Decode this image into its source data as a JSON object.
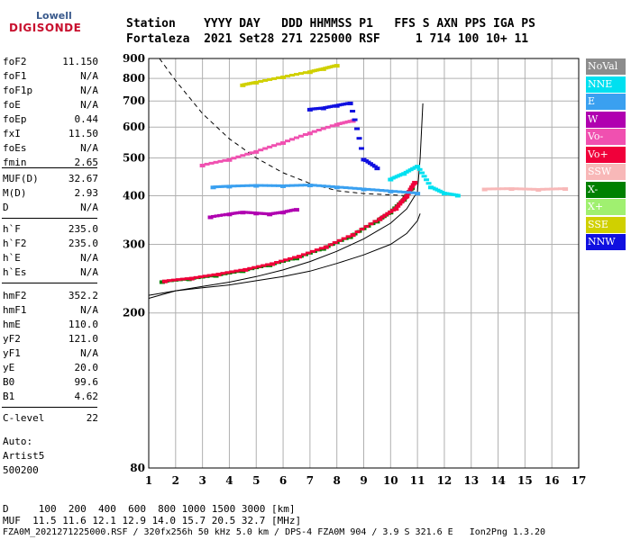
{
  "logo": {
    "line1": "Lowell",
    "line2": "DIGISONDE"
  },
  "header": {
    "line1": "Station    YYYY DAY   DDD HHMMSS P1   FFS S AXN PPS IGA PS",
    "line2": "Fortaleza  2021 Set28 271 225000 RSF     1 714 100 10+ 11"
  },
  "params_group1": [
    {
      "key": "foF2",
      "val": "11.150"
    },
    {
      "key": "foF1",
      "val": "N/A"
    },
    {
      "key": "foF1p",
      "val": "N/A"
    },
    {
      "key": "foE",
      "val": "N/A"
    },
    {
      "key": "foEp",
      "val": "0.44"
    },
    {
      "key": "fxI",
      "val": "11.50"
    },
    {
      "key": "foEs",
      "val": "N/A"
    },
    {
      "key": "fmin",
      "val": "2.65"
    }
  ],
  "params_group2": [
    {
      "key": "MUF(D)",
      "val": "32.67"
    },
    {
      "key": "M(D)",
      "val": "2.93"
    },
    {
      "key": "D",
      "val": "N/A"
    }
  ],
  "params_group3": [
    {
      "key": "h`F",
      "val": "235.0"
    },
    {
      "key": "h`F2",
      "val": "235.0"
    },
    {
      "key": "h`E",
      "val": "N/A"
    },
    {
      "key": "h`Es",
      "val": "N/A"
    }
  ],
  "params_group4": [
    {
      "key": "hmF2",
      "val": "352.2"
    },
    {
      "key": "hmF1",
      "val": "N/A"
    },
    {
      "key": "hmE",
      "val": "110.0"
    },
    {
      "key": "yF2",
      "val": "121.0"
    },
    {
      "key": "yF1",
      "val": "N/A"
    },
    {
      "key": "yE",
      "val": "20.0"
    },
    {
      "key": "B0",
      "val": "99.6"
    },
    {
      "key": "B1",
      "val": "4.62"
    }
  ],
  "params_group5": [
    {
      "key": "C-level",
      "val": "22"
    }
  ],
  "autoscale": {
    "line1": "Auto:",
    "line2": "Artist5",
    "line3": "500200"
  },
  "footer": {
    "line1": "D     100  200  400  600  800 1000 1500 3000 [km]",
    "line2": "MUF  11.5 11.6 12.1 12.9 14.0 15.7 20.5 32.7 [MHz]",
    "line3": "FZA0M_2021271225000.RSF / 320fx256h 50 kHz 5.0 km / DPS-4 FZA0M 904 / 3.9 S 321.6 E   Ion2Png 1.3.20"
  },
  "legend": [
    {
      "label": "NoVal",
      "color": "#8c8c8c"
    },
    {
      "label": "NNE",
      "color": "#00e0f0"
    },
    {
      "label": "E",
      "color": "#3aa0f0"
    },
    {
      "label": "W",
      "color": "#b000b0"
    },
    {
      "label": "Vo-",
      "color": "#f050b0"
    },
    {
      "label": "Vo+",
      "color": "#f0003a"
    },
    {
      "label": "SSW",
      "color": "#f8b8b8"
    },
    {
      "label": "X-",
      "color": "#008000"
    },
    {
      "label": "X+",
      "color": "#a0f070"
    },
    {
      "label": "SSE",
      "color": "#d0d000"
    },
    {
      "label": "NNW",
      "color": "#1010e0"
    }
  ],
  "chart_data": {
    "type": "scatter",
    "title": "",
    "xlabel": "",
    "ylabel": "",
    "xlim": [
      1,
      17
    ],
    "ylim": [
      80,
      900
    ],
    "y_scale": "log",
    "x_ticks": [
      1,
      2,
      3,
      4,
      5,
      6,
      7,
      8,
      9,
      10,
      11,
      12,
      13,
      14,
      15,
      16,
      17
    ],
    "y_ticks": [
      80,
      200,
      300,
      400,
      500,
      600,
      700,
      800,
      900
    ],
    "grid": true,
    "series": [
      {
        "name": "X-",
        "color": "#008000",
        "x": [
          1.5,
          2.5,
          3.5,
          4.5,
          5.5,
          6.5,
          7.5,
          8.5,
          9.5,
          10.0,
          10.5,
          10.8
        ],
        "y": [
          240,
          244,
          249,
          256,
          265,
          276,
          292,
          313,
          343,
          362,
          390,
          418
        ]
      },
      {
        "name": "Vo+",
        "color": "#f0003a",
        "x": [
          1.6,
          2.6,
          3.6,
          4.6,
          5.6,
          6.6,
          7.6,
          8.6,
          9.6,
          10.2,
          10.6,
          10.9
        ],
        "y": [
          241,
          245,
          251,
          258,
          267,
          279,
          295,
          317,
          348,
          370,
          398,
          432
        ]
      },
      {
        "name": "Vo-",
        "color": "#f050b0",
        "x": [
          3.0,
          4.0,
          5.0,
          6.0,
          7.0,
          8.0,
          8.6
        ],
        "y": [
          478,
          494,
          518,
          546,
          578,
          608,
          622
        ]
      },
      {
        "name": "E",
        "color": "#3aa0f0",
        "x": [
          3.4,
          4.0,
          5.0,
          6.0,
          7.0,
          8.0,
          9.0,
          10.0,
          11.0
        ],
        "y": [
          420,
          422,
          424,
          423,
          425,
          420,
          415,
          410,
          405
        ]
      },
      {
        "name": "W",
        "color": "#b000b0",
        "x": [
          3.3,
          4.0,
          4.5,
          5.0,
          5.5,
          6.0,
          6.5
        ],
        "y": [
          352,
          358,
          362,
          360,
          358,
          362,
          368
        ]
      },
      {
        "name": "NNW",
        "color": "#1010e0",
        "x": [
          7.0,
          7.5,
          8.0,
          8.5,
          9.0,
          9.5
        ],
        "y": [
          665,
          670,
          680,
          690,
          495,
          470
        ]
      },
      {
        "name": "NNE",
        "color": "#00e0f0",
        "x": [
          10.0,
          10.5,
          11.0,
          11.5,
          12.0,
          12.5
        ],
        "y": [
          440,
          455,
          475,
          420,
          405,
          400
        ]
      },
      {
        "name": "SSE",
        "color": "#d0d000",
        "x": [
          4.5,
          5.0,
          6.0,
          7.0,
          7.5,
          8.0
        ],
        "y": [
          768,
          780,
          805,
          830,
          845,
          862
        ]
      },
      {
        "name": "SSW",
        "color": "#f8b8b8",
        "x": [
          13.5,
          14.5,
          15.5,
          16.5
        ],
        "y": [
          415,
          416,
          414,
          416
        ]
      }
    ],
    "curves": [
      {
        "style": "dashed",
        "x": [
          1.4,
          2.0,
          3.0,
          4.0,
          5.0,
          6.0,
          7.0,
          8.0,
          9.0,
          10.0,
          10.6
        ],
        "y": [
          900,
          790,
          650,
          560,
          500,
          458,
          430,
          412,
          405,
          402,
          400
        ]
      },
      {
        "style": "solid",
        "x": [
          1.0,
          2.0,
          3.0,
          4.0,
          5.0,
          6.0,
          7.0,
          8.0,
          9.0,
          10.0,
          10.6,
          11.0,
          11.1,
          11.2
        ],
        "y": [
          218,
          228,
          234,
          240,
          248,
          258,
          271,
          288,
          310,
          340,
          370,
          410,
          500,
          690
        ]
      },
      {
        "style": "solid",
        "x": [
          1.0,
          2.0,
          3.0,
          4.0,
          5.0,
          6.0,
          7.0,
          8.0,
          9.0,
          10.0,
          10.6,
          11.0,
          11.1
        ],
        "y": [
          222,
          228,
          232,
          236,
          242,
          248,
          256,
          268,
          282,
          300,
          320,
          345,
          360
        ]
      }
    ]
  }
}
